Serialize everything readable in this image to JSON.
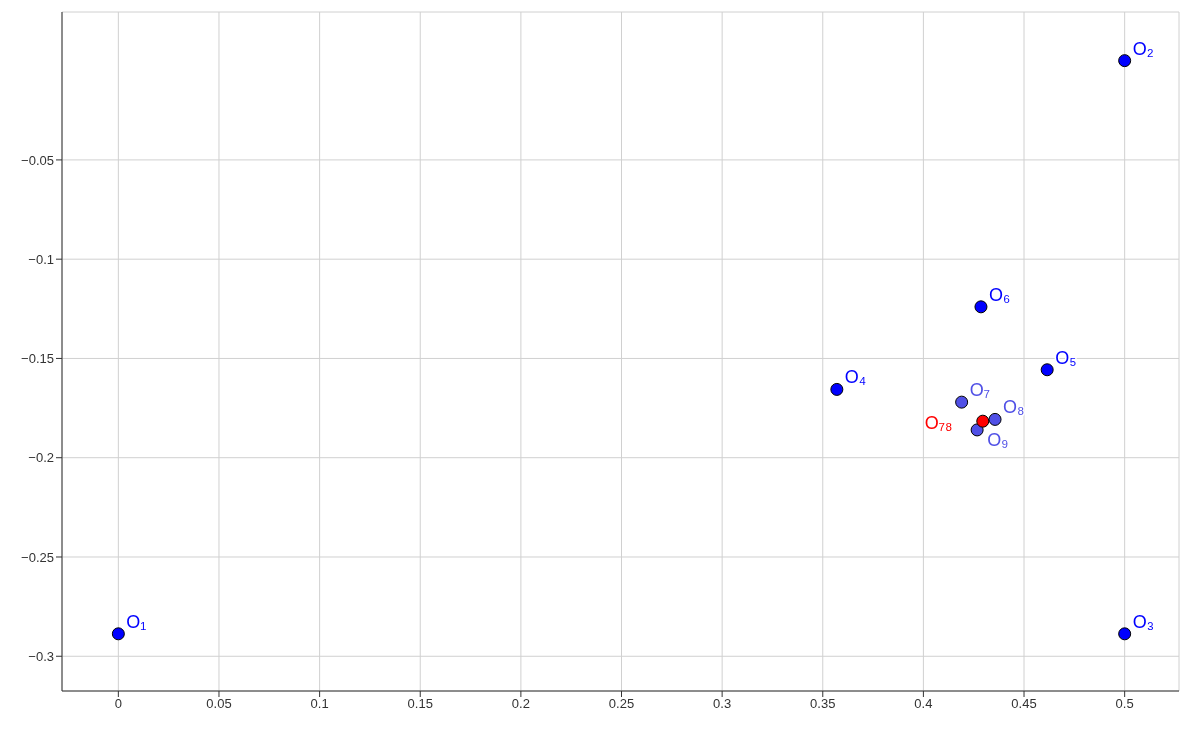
{
  "chart_data": {
    "type": "scatter",
    "xlim": [
      -0.028,
      0.527
    ],
    "ylim": [
      -0.3175,
      0.0245
    ],
    "xticks": [
      0,
      0.05,
      0.1,
      0.15,
      0.2,
      0.25,
      0.3,
      0.35,
      0.4,
      0.45,
      0.5
    ],
    "yticks": [
      -0.3,
      -0.25,
      -0.2,
      -0.15,
      -0.1,
      -0.05
    ],
    "grid": true,
    "legend": false,
    "marker": "circle",
    "series": [
      {
        "name": "O₁",
        "color": "#0000ff",
        "x": [
          0
        ],
        "values": [
          -0.2887
        ]
      },
      {
        "name": "O₂",
        "color": "#0000ff",
        "x": [
          0.5
        ],
        "values": [
          0
        ]
      },
      {
        "name": "O₃",
        "color": "#0000ff",
        "x": [
          0.5
        ],
        "values": [
          -0.2887
        ]
      },
      {
        "name": "O₄",
        "color": "#0000ff",
        "x": [
          0.357
        ],
        "values": [
          -0.1656
        ]
      },
      {
        "name": "O₅",
        "color": "#0000ff",
        "x": [
          0.4615
        ],
        "values": [
          -0.1557
        ]
      },
      {
        "name": "O₆",
        "color": "#0000ff",
        "x": [
          0.4286
        ],
        "values": [
          -0.124
        ]
      },
      {
        "name": "O₇",
        "color": "#5050e6",
        "x": [
          0.419
        ],
        "values": [
          -0.172
        ]
      },
      {
        "name": "O₈",
        "color": "#5050e6",
        "x": [
          0.4356
        ],
        "values": [
          -0.1807
        ]
      },
      {
        "name": "O₉",
        "color": "#5050e6",
        "x": [
          0.4267
        ],
        "values": [
          -0.186
        ]
      },
      {
        "name": "O₇₈",
        "color": "#ff0000",
        "x": [
          0.4295
        ],
        "values": [
          -0.1816
        ]
      }
    ]
  }
}
